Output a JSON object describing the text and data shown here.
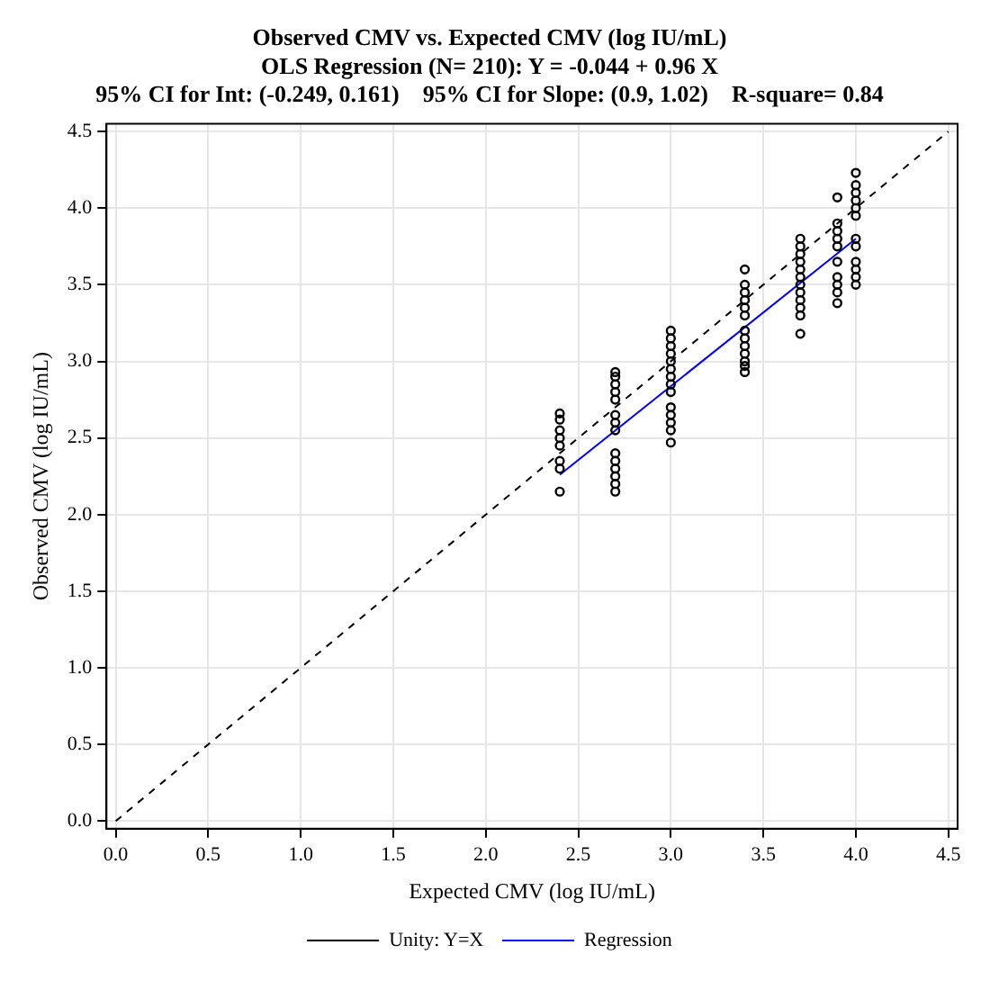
{
  "chart_data": {
    "type": "scatter",
    "title": "Observed CMV vs. Expected CMV (log IU/mL)",
    "subtitle": "OLS Regression (N= 210): Y = -0.044 + 0.96 X",
    "annotations": [
      "95% CI for Int: (-0.249, 0.161)    95% CI for Slope: (0.9, 1.02)    R-square= 0.84"
    ],
    "xlabel": "Expected CMV (log IU/mL)",
    "ylabel": "Observed CMV (log IU/mL)",
    "xlim": [
      -0.05,
      4.55
    ],
    "ylim": [
      -0.05,
      4.55
    ],
    "xticks": [
      {
        "value": 0,
        "label": "0.0"
      },
      {
        "value": 0.5,
        "label": "0.5"
      },
      {
        "value": 1,
        "label": "1.0"
      },
      {
        "value": 1.5,
        "label": "1.5"
      },
      {
        "value": 2,
        "label": "2.0"
      },
      {
        "value": 2.5,
        "label": "2.5"
      },
      {
        "value": 3,
        "label": "3.0"
      },
      {
        "value": 3.5,
        "label": "3.5"
      },
      {
        "value": 4,
        "label": "4.0"
      },
      {
        "value": 4.5,
        "label": "4.5"
      }
    ],
    "yticks": [
      {
        "value": 0,
        "label": "0.0"
      },
      {
        "value": 0.5,
        "label": "0.5"
      },
      {
        "value": 1,
        "label": "1.0"
      },
      {
        "value": 1.5,
        "label": "1.5"
      },
      {
        "value": 2,
        "label": "2.0"
      },
      {
        "value": 2.5,
        "label": "2.5"
      },
      {
        "value": 3,
        "label": "3.0"
      },
      {
        "value": 3.5,
        "label": "3.5"
      },
      {
        "value": 4,
        "label": "4.0"
      },
      {
        "value": 4.5,
        "label": "4.5"
      }
    ],
    "grid": true,
    "legend": "bottom",
    "series": [
      {
        "marker": "circle",
        "color": "#000000",
        "x": [
          2.4,
          2.4,
          2.4,
          2.4,
          2.4,
          2.4,
          2.4,
          2.4,
          2.7,
          2.7,
          2.7,
          2.7,
          2.7,
          2.7,
          2.7,
          2.7,
          2.7,
          2.7,
          2.7,
          2.7,
          2.7,
          2.7,
          3.0,
          3.0,
          3.0,
          3.0,
          3.0,
          3.0,
          3.0,
          3.0,
          3.0,
          3.0,
          3.0,
          3.0,
          3.0,
          3.0,
          3.4,
          3.4,
          3.4,
          3.4,
          3.4,
          3.4,
          3.4,
          3.4,
          3.4,
          3.4,
          3.4,
          3.4,
          3.4,
          3.7,
          3.7,
          3.7,
          3.7,
          3.7,
          3.7,
          3.7,
          3.7,
          3.7,
          3.7,
          3.7,
          3.7,
          3.9,
          3.9,
          3.9,
          3.9,
          3.9,
          3.9,
          3.9,
          3.9,
          3.9,
          3.9,
          4.0,
          4.0,
          4.0,
          4.0,
          4.0,
          4.0,
          4.0,
          4.0,
          4.0,
          4.0,
          4.0,
          4.0
        ],
        "values": [
          2.15,
          2.3,
          2.35,
          2.45,
          2.5,
          2.55,
          2.62,
          2.66,
          2.55,
          2.6,
          2.65,
          2.75,
          2.8,
          2.85,
          2.9,
          2.93,
          2.15,
          2.2,
          2.25,
          2.3,
          2.35,
          2.4,
          2.47,
          2.55,
          2.6,
          2.65,
          2.7,
          2.8,
          2.85,
          2.9,
          2.95,
          3.0,
          3.05,
          3.1,
          3.15,
          3.2,
          2.93,
          2.97,
          3.0,
          3.05,
          3.1,
          3.15,
          3.2,
          3.3,
          3.35,
          3.4,
          3.45,
          3.5,
          3.6,
          3.18,
          3.3,
          3.35,
          3.4,
          3.45,
          3.5,
          3.55,
          3.6,
          3.65,
          3.7,
          3.75,
          3.8,
          3.38,
          3.45,
          3.5,
          3.55,
          3.65,
          3.75,
          3.8,
          3.85,
          3.9,
          4.07,
          3.5,
          3.55,
          3.6,
          3.65,
          3.75,
          3.8,
          3.95,
          4.0,
          4.05,
          4.1,
          4.15,
          4.23
        ]
      },
      {
        "type": "line",
        "name": "Unity: Y=X",
        "color": "#000000",
        "line_style": "dashed",
        "marker": "none",
        "x": [
          0,
          4.5
        ],
        "values": [
          0,
          4.5
        ]
      },
      {
        "type": "line",
        "name": "Regression",
        "color": "#0000ff",
        "line_style": "solid",
        "marker": "none",
        "x": [
          2.4,
          4.0
        ],
        "values": [
          2.26,
          3.8
        ]
      }
    ]
  }
}
